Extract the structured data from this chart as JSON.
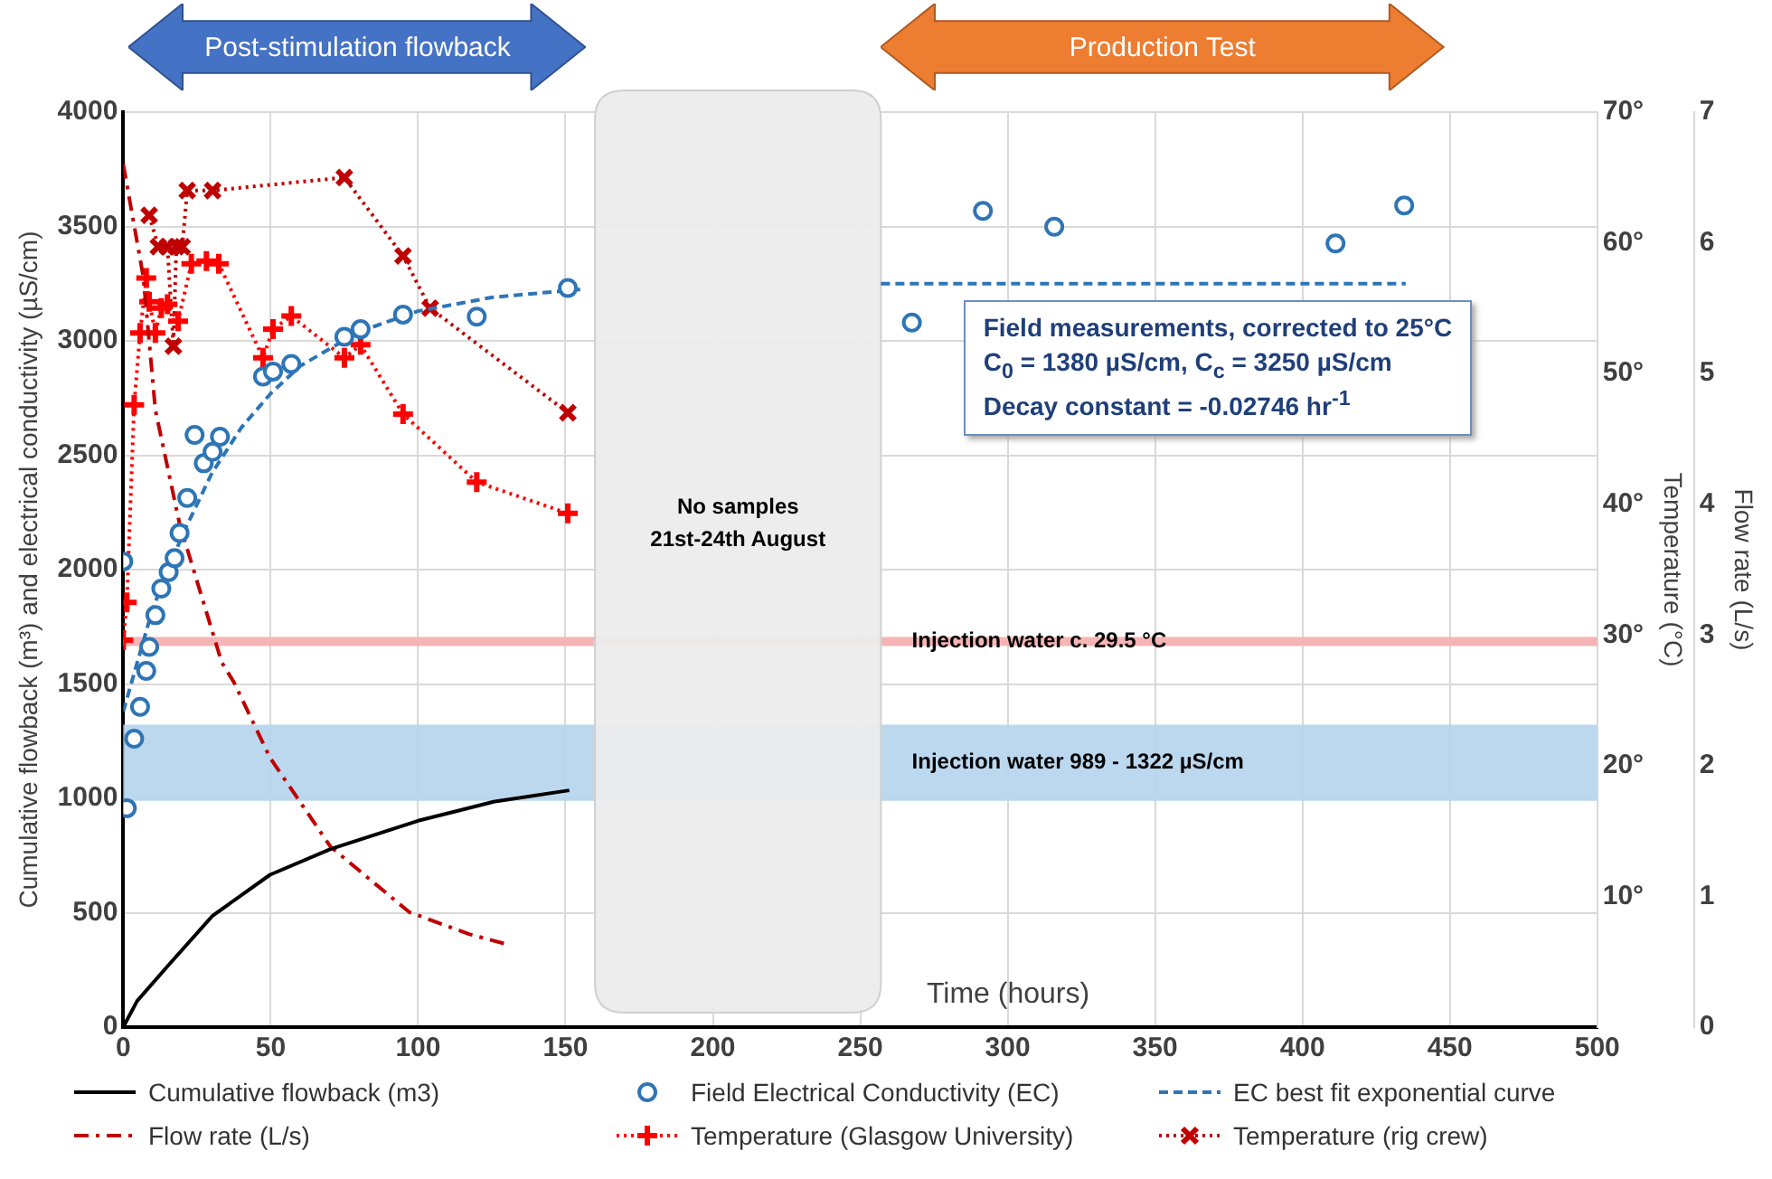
{
  "chart_data": {
    "type": "line",
    "xlabel": "Time (hours)",
    "ylabel": "Cumulative flowback (m³) and electrical conductivity (µS/cm)",
    "y2label": "Temperature (°C)",
    "y3label": "Flow rate (L/s)",
    "xlim": [
      0,
      500
    ],
    "xticks": [
      0,
      50,
      100,
      150,
      200,
      250,
      300,
      350,
      400,
      450,
      500
    ],
    "ylim": [
      0,
      4000
    ],
    "yticks": [
      0,
      500,
      1000,
      1500,
      2000,
      2500,
      3000,
      3500,
      4000
    ],
    "y2lim": [
      0,
      70
    ],
    "y2ticks": [
      {
        "value": 10,
        "label": "10°"
      },
      {
        "value": 20,
        "label": "20°"
      },
      {
        "value": 30,
        "label": "30°"
      },
      {
        "value": 40,
        "label": "40°"
      },
      {
        "value": 50,
        "label": "50°"
      },
      {
        "value": 60,
        "label": "60°"
      },
      {
        "value": 70,
        "label": "70°"
      }
    ],
    "y3lim": [
      0,
      7
    ],
    "y3ticks": [
      0,
      1,
      2,
      3,
      4,
      5,
      6,
      7
    ],
    "grid": true,
    "legend": "bottom",
    "series": [
      {
        "name": "Cumulative flowback (m3)",
        "type": "line",
        "color": "#000000",
        "marker": "none",
        "line_style": "solid",
        "x": [
          0,
          4.7,
          15,
          30.3,
          49.8,
          70.3,
          100,
          125.6,
          151.3
        ],
        "values": [
          0,
          114,
          266,
          487,
          666,
          778,
          902,
          985,
          1035
        ]
      },
      {
        "name": "Field Electrical Conductivity (EC)",
        "type": "scatter",
        "color": "#2e75b6",
        "marker": "circle",
        "x": [
          0,
          1.2,
          3.7,
          5.7,
          7.8,
          8.8,
          10.9,
          12.9,
          15.4,
          17.4,
          19.1,
          21.7,
          24.2,
          27.3,
          30.3,
          32.8,
          47.4,
          50.8,
          57,
          75,
          80.5,
          94.9,
          119.9,
          150.8,
          267.5,
          291.6,
          315.8,
          411.2,
          434.5
        ],
        "values": [
          2036,
          957,
          1261,
          1400,
          1557,
          1662,
          1801,
          1917,
          1989,
          2050,
          2160,
          2313,
          2589,
          2465,
          2515,
          2581,
          2844,
          2866,
          2899,
          3018,
          3051,
          3115,
          3106,
          3231,
          3080,
          3568,
          3499,
          3426,
          3592
        ]
      },
      {
        "name": "EC best fit exponential curve",
        "type": "line",
        "color": "#2e75b6",
        "marker": "none",
        "line_style": "dashed",
        "x": [
          0,
          10,
          20,
          30,
          40,
          50,
          60,
          80,
          100,
          125,
          155,
          200,
          257,
          435
        ],
        "values": [
          1380,
          1830,
          2150,
          2420,
          2620,
          2770,
          2890,
          3040,
          3130,
          3190,
          3225,
          null,
          3250,
          3250
        ]
      },
      {
        "name": "Flow rate (L/s)",
        "type": "line",
        "axis": "y3",
        "color": "#c00000",
        "marker": "none",
        "line_style": "dashdot",
        "x": [
          0,
          6.8,
          10.9,
          19.1,
          33.4,
          37.5,
          49.8,
          70.3,
          97,
          117.5,
          130.8
        ],
        "values": [
          6.6,
          5.74,
          4.72,
          3.85,
          2.79,
          2.64,
          2.06,
          1.38,
          0.88,
          0.71,
          0.63
        ]
      },
      {
        "name": "Temperature (Glasgow University)",
        "type": "line",
        "axis": "y2",
        "color": "#ff0000",
        "marker": "plus",
        "line_style": "dotted",
        "x": [
          0,
          1.2,
          3.7,
          5.7,
          7.8,
          8.8,
          10.9,
          12.9,
          15,
          18.6,
          23.1,
          28.2,
          32.4,
          47.4,
          50.8,
          57,
          75,
          80.5,
          94.9,
          119.9,
          150.8
        ],
        "values": [
          29.6,
          32.5,
          47.6,
          53.1,
          57.3,
          55.5,
          53.1,
          55,
          55.3,
          54,
          58.4,
          58.6,
          58.4,
          51.2,
          53.4,
          54.4,
          51.2,
          52.2,
          46.9,
          41.7,
          39.3
        ]
      },
      {
        "name": "Temperature (rig crew)",
        "type": "line",
        "axis": "y2",
        "color": "#c00000",
        "marker": "cross",
        "line_style": "dotted",
        "x": [
          8.8,
          11.9,
          15,
          17,
          18,
          20,
          21.7,
          30.3,
          75,
          94.9,
          104.1,
          150.8
        ],
        "values": [
          62.1,
          59.7,
          59.7,
          52.1,
          59.7,
          59.7,
          64,
          64,
          65,
          59,
          55,
          47
        ]
      }
    ],
    "ref_lines": [
      {
        "axis": "y2",
        "value": 29.5,
        "label": "Injection water c. 29.5 °C",
        "color": "#f7b4b4"
      }
    ],
    "bands": [
      {
        "axis": "y",
        "from": 989,
        "to": 1322,
        "label": "Injection water 989 - 1322 µS/cm",
        "color": "#b4d4ec"
      },
      {
        "axis": "x",
        "from": 160,
        "to": 257,
        "label": "No samples\n21st-24th August",
        "color": "#ececec"
      }
    ],
    "annotations": [
      "Post-stimulation flowback",
      "Production Test",
      "Field measurements, corrected to 25°C\nC$_{0}$ = 1380 µS/cm, C$_{c}$ = 3250 µS/cm\nDecay constant = -0.02746 hr$^{-1}$"
    ]
  }
}
